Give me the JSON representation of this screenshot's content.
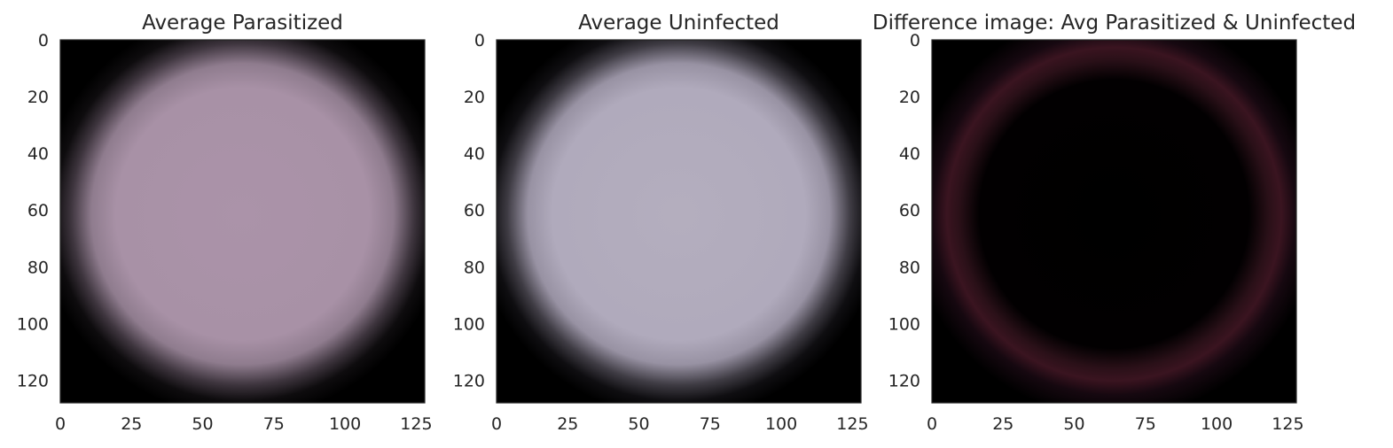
{
  "chart_data": [
    {
      "type": "heatmap",
      "title": "Average Parasitized",
      "image": "mean image of parasitized cells, 128x128 RGB",
      "xlim": [
        0,
        128
      ],
      "ylim": [
        128,
        0
      ],
      "xticks": [
        0,
        25,
        50,
        75,
        100,
        125
      ],
      "yticks": [
        0,
        20,
        40,
        60,
        80,
        100,
        120
      ],
      "grid": false,
      "colors": {
        "center": "#ab93a9",
        "edge": "#000000"
      }
    },
    {
      "type": "heatmap",
      "title": "Average Uninfected",
      "image": "mean image of uninfected cells, 128x128 RGB",
      "xlim": [
        0,
        128
      ],
      "ylim": [
        128,
        0
      ],
      "xticks": [
        0,
        25,
        50,
        75,
        100,
        125
      ],
      "yticks": [
        0,
        20,
        40,
        60,
        80,
        100,
        120
      ],
      "grid": false,
      "colors": {
        "center": "#b4aebe",
        "edge": "#000000"
      }
    },
    {
      "type": "heatmap",
      "title": "Difference image: Avg Parasitized & Uninfected",
      "image": "absolute difference of the two mean images, 128x128 RGB",
      "xlim": [
        0,
        128
      ],
      "ylim": [
        128,
        0
      ],
      "xticks": [
        0,
        25,
        50,
        75,
        100,
        125
      ],
      "yticks": [
        0,
        20,
        40,
        60,
        80,
        100,
        120
      ],
      "grid": false,
      "colors": {
        "center": "#000000",
        "ring": "#3a1420"
      }
    }
  ]
}
